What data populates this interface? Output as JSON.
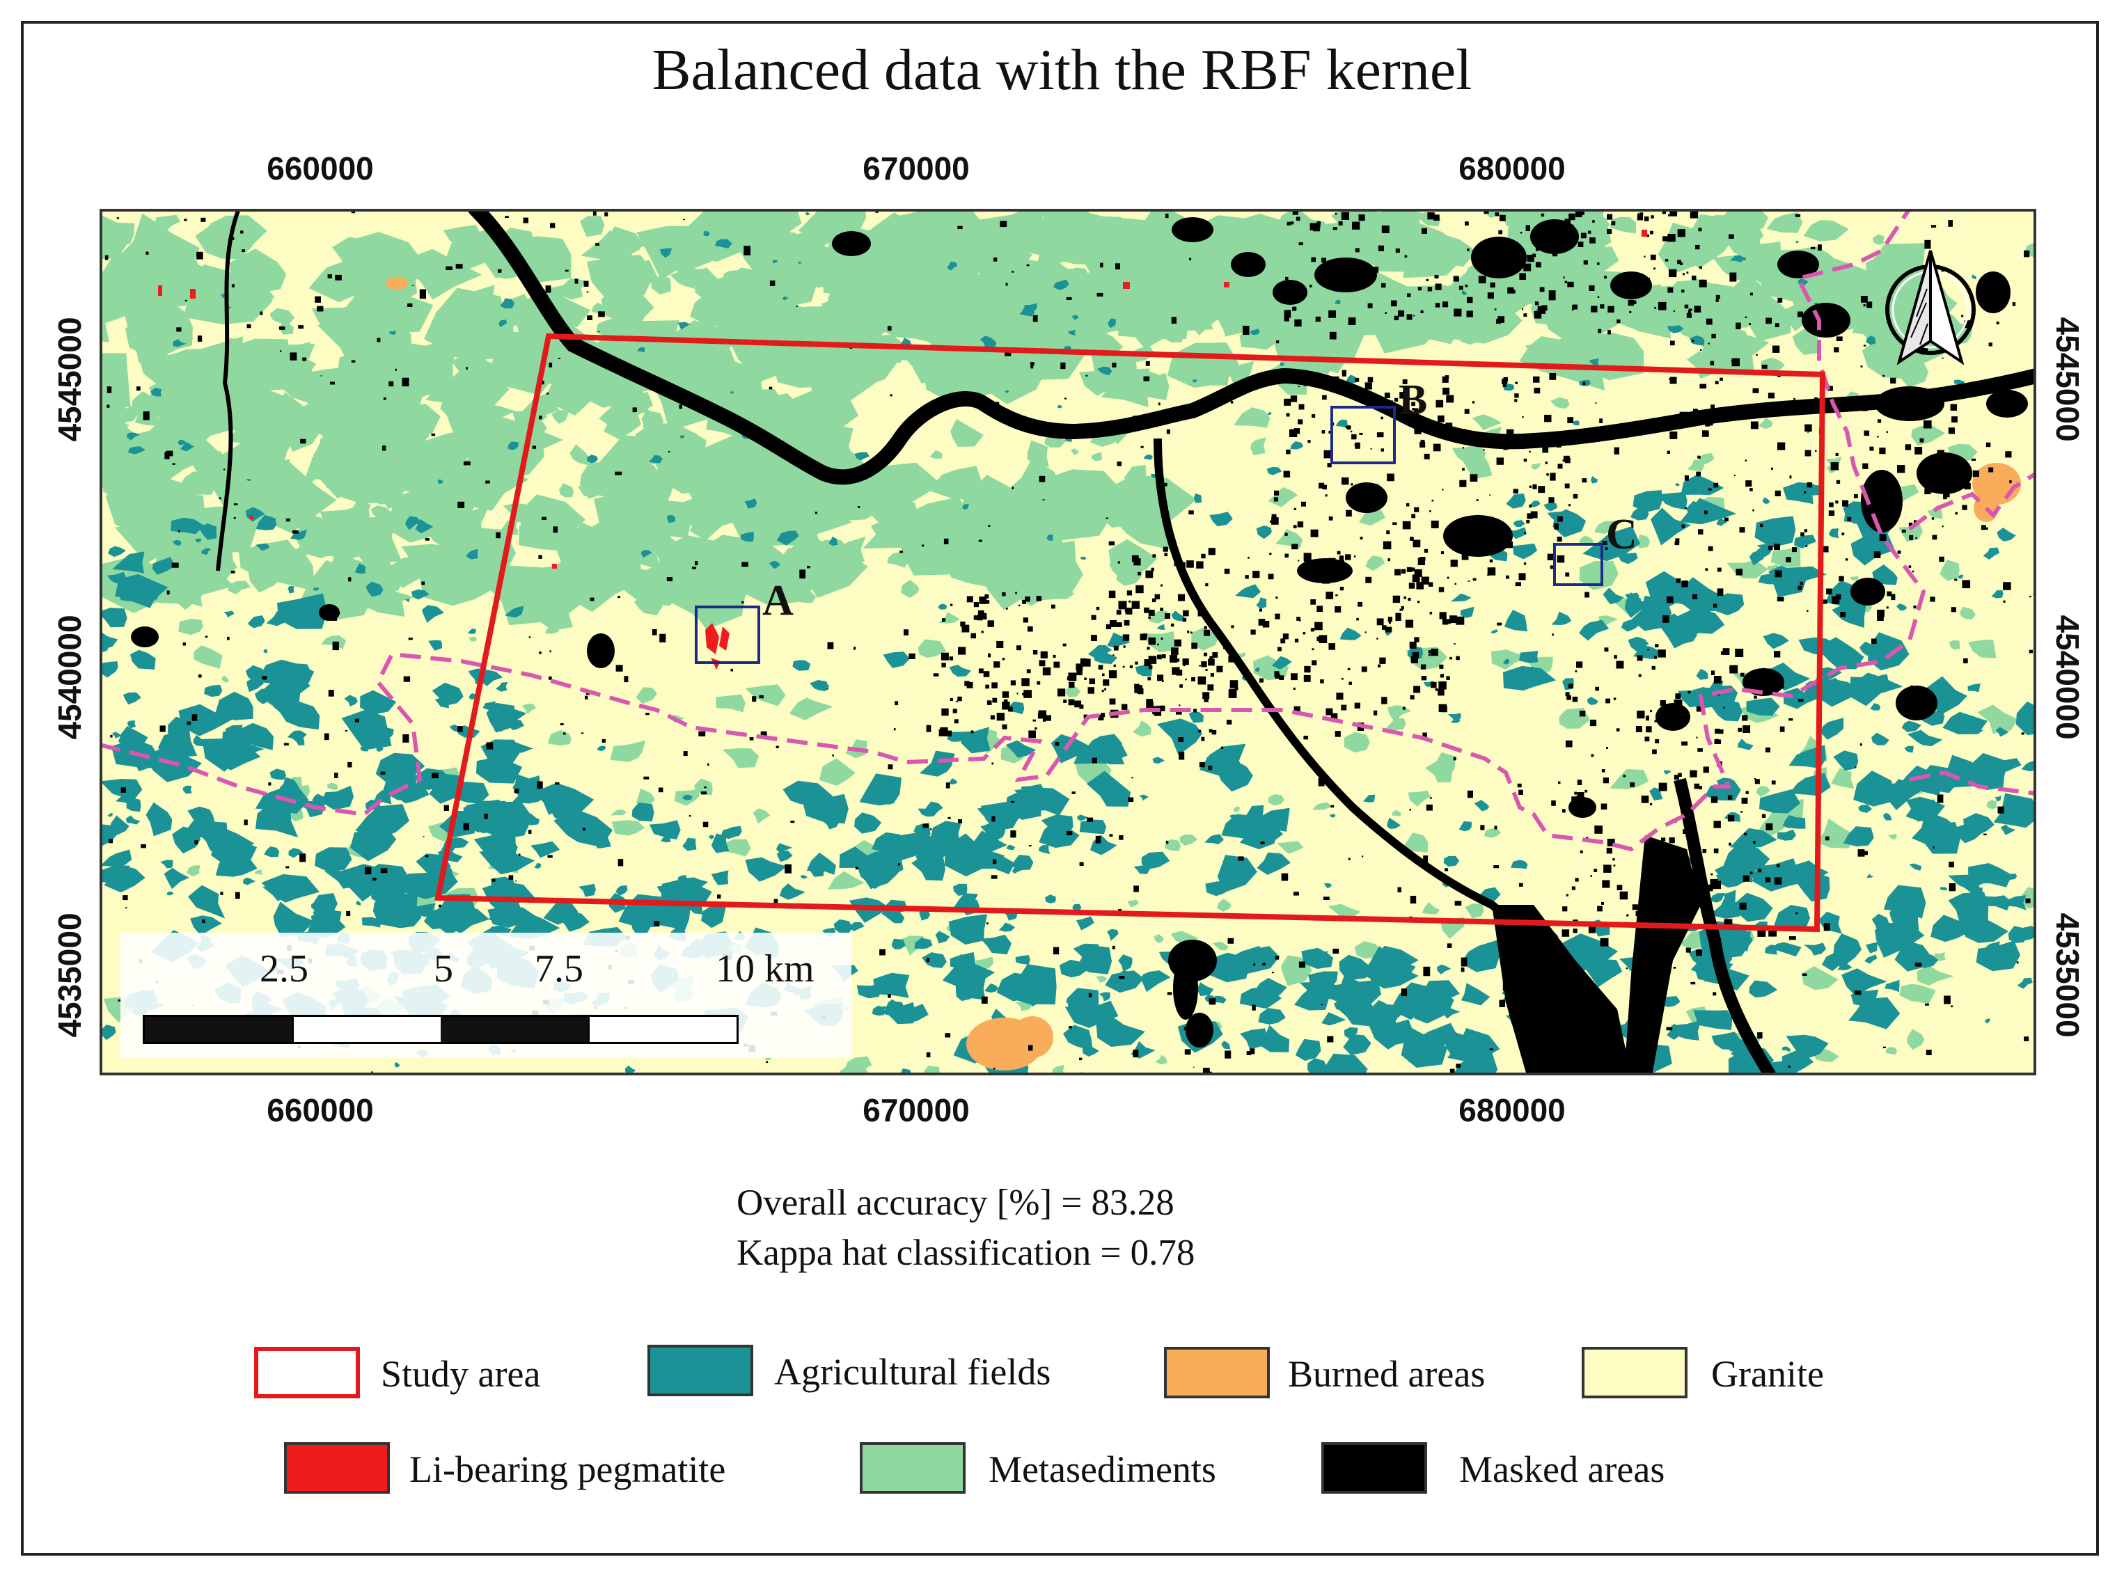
{
  "title": "Balanced data with the RBF kernel",
  "axes": {
    "x_ticks": [
      "660000",
      "670000",
      "680000"
    ],
    "y_ticks": [
      "4545000",
      "4540000",
      "4535000"
    ]
  },
  "map_labels": {
    "box_a": "A",
    "box_b": "B",
    "box_c": "C"
  },
  "scale_bar": {
    "labels": [
      "2.5",
      "5",
      "7.5",
      "10 km"
    ]
  },
  "accuracy": {
    "overall": "Overall accuracy [%] = 83.28",
    "kappa": "Kappa hat classification = 0.78"
  },
  "legend": [
    {
      "label": "Study area",
      "color": "#ffffff",
      "border": "#e31a1c"
    },
    {
      "label": "Agricultural fields",
      "color": "#1a9296"
    },
    {
      "label": "Burned areas",
      "color": "#f9ac5a"
    },
    {
      "label": "Granite",
      "color": "#fdfdc3"
    },
    {
      "label": "Li-bearing pegmatite",
      "color": "#ee1c1c"
    },
    {
      "label": "Metasediments",
      "color": "#8fd9a0"
    },
    {
      "label": "Masked areas",
      "color": "#000000"
    }
  ],
  "colors": {
    "granite": "#fdfdc3",
    "metasediments": "#8fd9a0",
    "agricultural": "#1a9296",
    "burned": "#f9ac5a",
    "pegmatite": "#ee1c1c",
    "masked": "#000000",
    "study_area": "#e31a1c",
    "admin_boundary": "#d957b0",
    "zoom_boxes": "#1c2a8c"
  },
  "north_arrow_icon": "north-arrow-icon"
}
